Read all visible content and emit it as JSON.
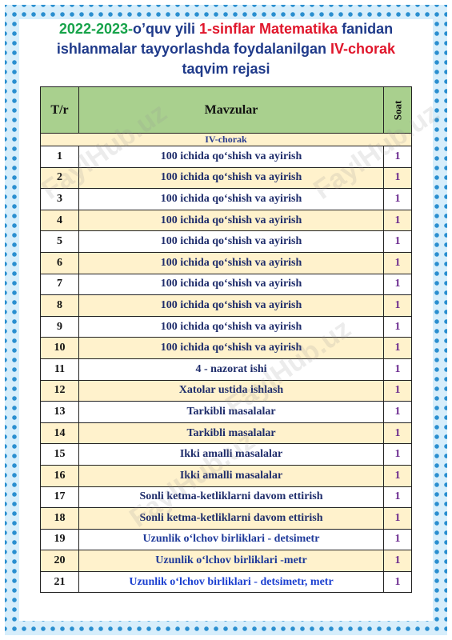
{
  "title": {
    "segments": [
      "2022-2023-",
      "o’quv yili ",
      "1-sinflar Matematika",
      "  fanidan ishlanmalar tayyorlashda foydalanilgan ",
      "IV-chorak",
      " taqvim rejasi"
    ]
  },
  "watermark": "FaylHub.uz",
  "table": {
    "header": [
      "T/r",
      "Mavzular",
      "Soat"
    ],
    "section": "IV-chorak",
    "rows": [
      [
        1,
        "100 ichida qo‘shish va ayirish",
        1
      ],
      [
        2,
        "100 ichida qo‘shish va ayirish",
        1
      ],
      [
        3,
        "100 ichida qo‘shish va ayirish",
        1
      ],
      [
        4,
        "100 ichida qo‘shish va ayirish",
        1
      ],
      [
        5,
        "100 ichida qo‘shish va ayirish",
        1
      ],
      [
        6,
        "100 ichida qo‘shish va ayirish",
        1
      ],
      [
        7,
        "100 ichida qo‘shish va ayirish",
        1
      ],
      [
        8,
        "100 ichida qo‘shish va ayirish",
        1
      ],
      [
        9,
        "100 ichida qo‘shish va ayirish",
        1
      ],
      [
        10,
        "100 ichida qo‘shish va ayirish",
        1
      ],
      [
        11,
        "4 - nazorat ishi",
        1
      ],
      [
        12,
        "Xatolar ustida ishlash",
        1
      ],
      [
        13,
        "Tarkibli masalalar",
        1
      ],
      [
        14,
        "Tarkibli masalalar",
        1
      ],
      [
        15,
        "Ikki amalli masalalar",
        1
      ],
      [
        16,
        "Ikki amalli masalalar",
        1
      ],
      [
        17,
        "Sonli ketma-ketliklarni davom ettirish",
        1
      ],
      [
        18,
        "Sonli ketma-ketliklarni davom ettirish",
        1
      ],
      [
        19,
        "Uzunlik o‘lchov birliklari - detsimetr",
        1
      ],
      [
        20,
        "Uzunlik o‘lchov birliklari -metr",
        1
      ],
      [
        21,
        "Uzunlik o‘lchov birliklari - detsimetr, metr",
        1
      ]
    ]
  }
}
